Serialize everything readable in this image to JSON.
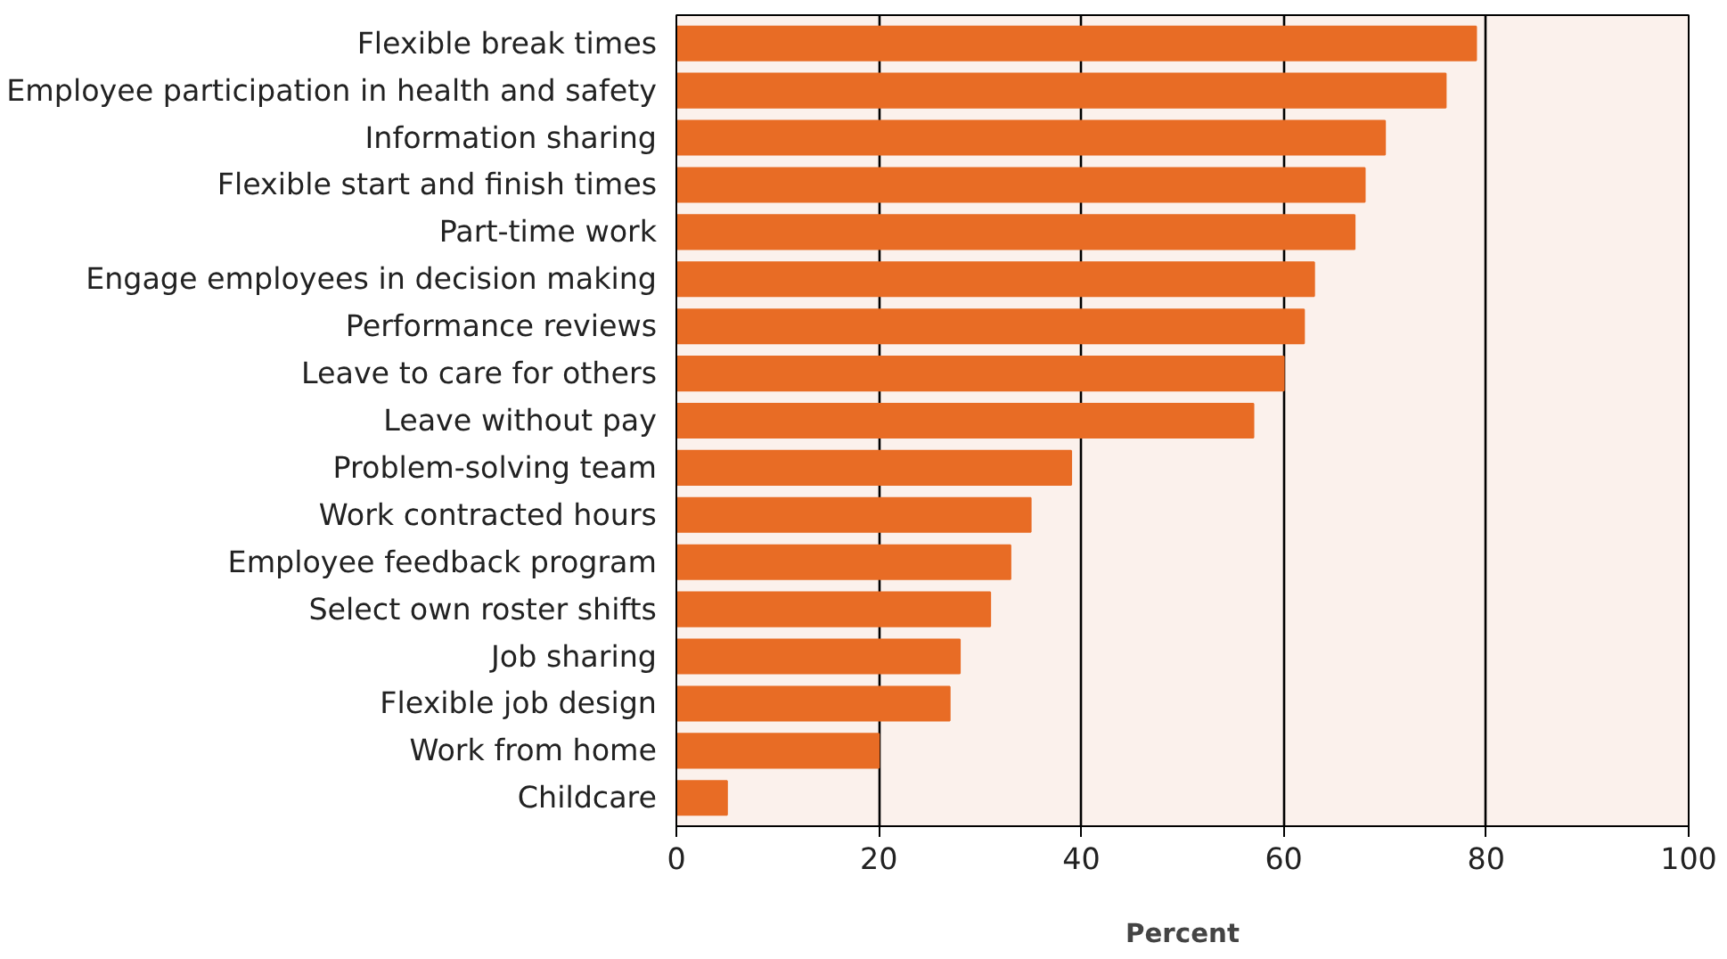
{
  "chart_data": {
    "type": "bar",
    "orientation": "horizontal",
    "xlabel": "Percent",
    "categories": [
      "Flexible break times",
      "Employee participation in health and safety",
      "Information sharing",
      "Flexible start and finish times",
      "Part-time work",
      "Engage employees in decision making",
      "Performance reviews",
      "Leave to care for others",
      "Leave without pay",
      "Problem-solving team",
      "Work contracted hours",
      "Employee feedback program",
      "Select own roster shifts",
      "Job sharing",
      "Flexible job design",
      "Work from home",
      "Childcare"
    ],
    "values": [
      79,
      76,
      70,
      68,
      67,
      63,
      62,
      60,
      57,
      39,
      35,
      33,
      31,
      28,
      27,
      20,
      5
    ],
    "color": "#e86c25",
    "xlim": [
      0,
      100
    ],
    "xticks": [
      0,
      20,
      40,
      60,
      80,
      100
    ],
    "grid": "x"
  }
}
